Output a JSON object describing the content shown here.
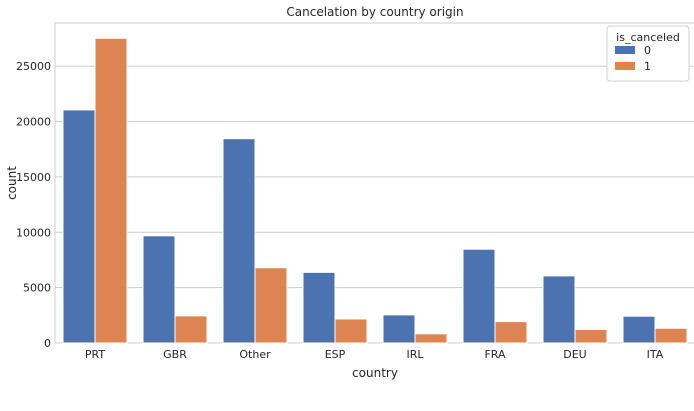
{
  "chart_data": {
    "type": "bar",
    "title": "Cancelation by country origin",
    "xlabel": "country",
    "ylabel": "count",
    "categories": [
      "PRT",
      "GBR",
      "Other",
      "ESP",
      "IRL",
      "FRA",
      "DEU",
      "ITA"
    ],
    "series": [
      {
        "name": "0",
        "color": "#4c72b0",
        "values": [
          21050,
          9680,
          18450,
          6380,
          2540,
          8470,
          6060,
          2420
        ]
      },
      {
        "name": "1",
        "color": "#dd8452",
        "values": [
          27520,
          2450,
          6800,
          2170,
          830,
          1930,
          1220,
          1330
        ]
      }
    ],
    "ylim": [
      0,
      28900
    ],
    "yticks": [
      0,
      5000,
      10000,
      15000,
      20000,
      25000
    ],
    "grid": true,
    "legend": {
      "title": "is_canceled",
      "placement": "top-right"
    }
  }
}
